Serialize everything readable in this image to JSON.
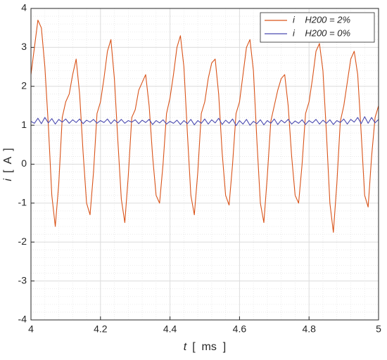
{
  "chart_data": {
    "type": "line",
    "xlabel_symbol": "t",
    "xlabel_unit": "[  ms  ]",
    "ylabel_symbol": "i",
    "ylabel_unit": "[  A  ]",
    "xlim": [
      4,
      5
    ],
    "xticks": [
      4,
      4.2,
      4.4,
      4.6,
      4.8,
      5
    ],
    "ylim": [
      -4,
      4
    ],
    "yticks": [
      -4,
      -3,
      -2,
      -1,
      0,
      1,
      2,
      3,
      4
    ],
    "grid": true,
    "minor_grid": true,
    "legend": "northeast",
    "x": [
      4.0,
      4.01,
      4.02,
      4.03,
      4.04,
      4.05,
      4.06,
      4.07,
      4.08,
      4.09,
      4.1,
      4.11,
      4.12,
      4.13,
      4.14,
      4.15,
      4.16,
      4.17,
      4.18,
      4.19,
      4.2,
      4.21,
      4.22,
      4.23,
      4.24,
      4.25,
      4.26,
      4.27,
      4.28,
      4.29,
      4.3,
      4.31,
      4.32,
      4.33,
      4.34,
      4.35,
      4.36,
      4.37,
      4.38,
      4.39,
      4.4,
      4.41,
      4.42,
      4.43,
      4.44,
      4.45,
      4.46,
      4.47,
      4.48,
      4.49,
      4.5,
      4.51,
      4.52,
      4.53,
      4.54,
      4.55,
      4.56,
      4.57,
      4.58,
      4.59,
      4.6,
      4.61,
      4.62,
      4.63,
      4.64,
      4.65,
      4.66,
      4.67,
      4.68,
      4.69,
      4.7,
      4.71,
      4.72,
      4.73,
      4.74,
      4.75,
      4.76,
      4.77,
      4.78,
      4.79,
      4.8,
      4.81,
      4.82,
      4.83,
      4.84,
      4.85,
      4.86,
      4.87,
      4.88,
      4.89,
      4.9,
      4.91,
      4.92,
      4.93,
      4.94,
      4.95,
      4.96,
      4.97,
      4.98,
      4.99,
      5.0
    ],
    "series": [
      {
        "name": "i    H200 = 2%",
        "color": "#d95319",
        "values": [
          2.3,
          3.0,
          3.7,
          3.5,
          2.5,
          1.0,
          -0.8,
          -1.6,
          -0.5,
          1.2,
          1.6,
          1.8,
          2.3,
          2.7,
          1.8,
          0.3,
          -1.0,
          -1.3,
          -0.2,
          1.3,
          1.6,
          2.2,
          2.9,
          3.2,
          2.2,
          0.6,
          -0.9,
          -1.5,
          -0.3,
          1.2,
          1.4,
          1.9,
          2.1,
          2.3,
          1.5,
          0.2,
          -0.8,
          -1.0,
          0.0,
          1.3,
          1.7,
          2.3,
          3.0,
          3.3,
          2.5,
          0.8,
          -0.8,
          -1.3,
          -0.2,
          1.3,
          1.6,
          2.2,
          2.6,
          2.7,
          1.8,
          0.3,
          -0.8,
          -1.05,
          0.0,
          1.3,
          1.6,
          2.3,
          3.0,
          3.2,
          2.4,
          0.6,
          -1.0,
          -1.5,
          -0.3,
          1.1,
          1.5,
          1.9,
          2.2,
          2.3,
          1.5,
          0.2,
          -0.8,
          -1.0,
          0.0,
          1.3,
          1.6,
          2.2,
          2.9,
          3.1,
          2.4,
          0.8,
          -1.0,
          -1.75,
          -0.5,
          1.1,
          1.5,
          2.1,
          2.7,
          2.9,
          2.3,
          0.8,
          -0.8,
          -1.1,
          0.2,
          1.2,
          1.5
        ]
      },
      {
        "name": "i    H200 = 0%",
        "color": "#4b4bb0",
        "values": [
          1.1,
          1.05,
          1.18,
          1.04,
          1.2,
          1.06,
          1.17,
          1.03,
          1.15,
          1.08,
          1.16,
          1.05,
          1.14,
          1.07,
          1.16,
          1.04,
          1.13,
          1.08,
          1.15,
          1.05,
          1.12,
          1.07,
          1.16,
          1.04,
          1.14,
          1.06,
          1.15,
          1.05,
          1.12,
          1.08,
          1.14,
          1.04,
          1.13,
          1.07,
          1.15,
          1.02,
          1.12,
          1.06,
          1.14,
          1.03,
          1.1,
          1.05,
          1.13,
          1.02,
          1.12,
          1.04,
          1.15,
          1.01,
          1.12,
          1.05,
          1.16,
          1.03,
          1.14,
          1.06,
          1.18,
          1.02,
          1.13,
          1.05,
          1.16,
          0.99,
          1.12,
          1.03,
          1.15,
          1.0,
          1.1,
          1.04,
          1.14,
          1.01,
          1.12,
          1.05,
          1.16,
          1.02,
          1.13,
          1.06,
          1.15,
          1.03,
          1.11,
          1.05,
          1.14,
          1.02,
          1.12,
          1.06,
          1.15,
          1.03,
          1.13,
          1.05,
          1.14,
          1.02,
          1.12,
          1.07,
          1.16,
          1.03,
          1.15,
          1.08,
          1.2,
          1.04,
          1.22,
          1.05,
          1.2,
          1.06,
          1.15
        ]
      }
    ]
  }
}
